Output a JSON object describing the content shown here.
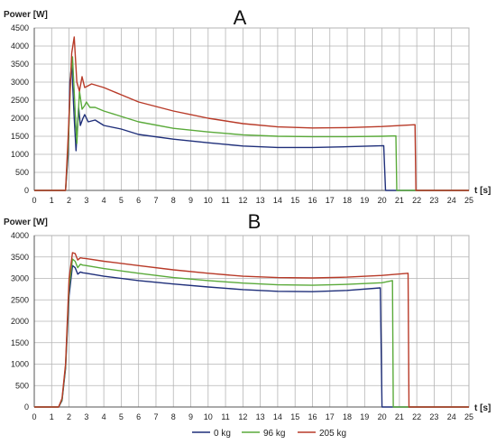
{
  "chart_data": [
    {
      "type": "line",
      "title": "A",
      "ylabel": "Power [W]",
      "xlabel": "t [s]",
      "xlim": [
        0,
        25
      ],
      "ylim": [
        0,
        4500
      ],
      "xticks": [
        "0",
        "1",
        "2",
        "3",
        "4",
        "5",
        "6",
        "7",
        "8",
        "9",
        "10",
        "11",
        "12",
        "13",
        "14",
        "15",
        "16",
        "17",
        "18",
        "19",
        "20",
        "21",
        "22",
        "23",
        "24",
        "25"
      ],
      "yticks": [
        "0",
        "500",
        "1000",
        "1500",
        "2000",
        "2500",
        "3000",
        "3500",
        "4000",
        "4500"
      ],
      "grid": true,
      "series": [
        {
          "name": "0 kg",
          "color": "#1f2f7a",
          "points": [
            [
              0,
              0
            ],
            [
              1.8,
              0
            ],
            [
              1.95,
              1000
            ],
            [
              2.05,
              3000
            ],
            [
              2.15,
              3500
            ],
            [
              2.3,
              2000
            ],
            [
              2.4,
              1100
            ],
            [
              2.55,
              2300
            ],
            [
              2.65,
              1800
            ],
            [
              2.8,
              2000
            ],
            [
              2.9,
              2100
            ],
            [
              3.1,
              1900
            ],
            [
              3.5,
              1950
            ],
            [
              4,
              1800
            ],
            [
              5,
              1700
            ],
            [
              6,
              1550
            ],
            [
              8,
              1420
            ],
            [
              10,
              1320
            ],
            [
              12,
              1230
            ],
            [
              14,
              1190
            ],
            [
              16,
              1190
            ],
            [
              18,
              1210
            ],
            [
              20.1,
              1240
            ],
            [
              20.2,
              0
            ],
            [
              25,
              0
            ]
          ]
        },
        {
          "name": "96 kg",
          "color": "#5aaa3a",
          "points": [
            [
              0,
              0
            ],
            [
              1.8,
              0
            ],
            [
              1.95,
              1200
            ],
            [
              2.1,
              3200
            ],
            [
              2.2,
              3700
            ],
            [
              2.35,
              2200
            ],
            [
              2.45,
              1300
            ],
            [
              2.6,
              2750
            ],
            [
              2.75,
              2250
            ],
            [
              2.9,
              2350
            ],
            [
              3,
              2450
            ],
            [
              3.2,
              2300
            ],
            [
              3.5,
              2300
            ],
            [
              4,
              2200
            ],
            [
              5,
              2050
            ],
            [
              6,
              1900
            ],
            [
              8,
              1720
            ],
            [
              10,
              1620
            ],
            [
              12,
              1540
            ],
            [
              14,
              1500
            ],
            [
              16,
              1490
            ],
            [
              18,
              1490
            ],
            [
              20,
              1500
            ],
            [
              20.8,
              1510
            ],
            [
              20.85,
              0
            ],
            [
              25,
              0
            ]
          ]
        },
        {
          "name": "205 kg",
          "color": "#b83a28",
          "points": [
            [
              0,
              0
            ],
            [
              1.8,
              0
            ],
            [
              1.95,
              1500
            ],
            [
              2.15,
              3800
            ],
            [
              2.3,
              4250
            ],
            [
              2.45,
              3000
            ],
            [
              2.6,
              2750
            ],
            [
              2.75,
              3150
            ],
            [
              2.9,
              2850
            ],
            [
              3.1,
              2900
            ],
            [
              3.3,
              2950
            ],
            [
              4,
              2850
            ],
            [
              5,
              2650
            ],
            [
              6,
              2450
            ],
            [
              8,
              2200
            ],
            [
              10,
              2000
            ],
            [
              12,
              1850
            ],
            [
              14,
              1760
            ],
            [
              16,
              1730
            ],
            [
              18,
              1740
            ],
            [
              20,
              1770
            ],
            [
              21.9,
              1820
            ],
            [
              21.95,
              0
            ],
            [
              25,
              0
            ]
          ]
        }
      ]
    },
    {
      "type": "line",
      "title": "B",
      "ylabel": "Power [W]",
      "xlabel": "t [s]",
      "xlim": [
        0,
        25
      ],
      "ylim": [
        0,
        4000
      ],
      "xticks": [
        "0",
        "1",
        "2",
        "3",
        "4",
        "5",
        "6",
        "7",
        "8",
        "9",
        "10",
        "11",
        "12",
        "13",
        "14",
        "15",
        "16",
        "17",
        "18",
        "19",
        "20",
        "21",
        "22",
        "23",
        "24",
        "25"
      ],
      "yticks": [
        "0",
        "500",
        "1000",
        "1500",
        "2000",
        "2500",
        "3000",
        "3500",
        "4000"
      ],
      "grid": true,
      "series": [
        {
          "name": "0 kg",
          "color": "#1f2f7a",
          "points": [
            [
              0,
              0
            ],
            [
              1.4,
              0
            ],
            [
              1.6,
              150
            ],
            [
              1.8,
              900
            ],
            [
              2,
              2600
            ],
            [
              2.2,
              3300
            ],
            [
              2.35,
              3250
            ],
            [
              2.5,
              3100
            ],
            [
              2.65,
              3150
            ],
            [
              2.8,
              3130
            ],
            [
              3,
              3120
            ],
            [
              4,
              3050
            ],
            [
              6,
              2950
            ],
            [
              8,
              2870
            ],
            [
              10,
              2800
            ],
            [
              12,
              2740
            ],
            [
              14,
              2700
            ],
            [
              16,
              2690
            ],
            [
              18,
              2720
            ],
            [
              19.9,
              2780
            ],
            [
              20,
              0
            ],
            [
              25,
              0
            ]
          ]
        },
        {
          "name": "96 kg",
          "color": "#5aaa3a",
          "points": [
            [
              0,
              0
            ],
            [
              1.4,
              0
            ],
            [
              1.6,
              170
            ],
            [
              1.8,
              950
            ],
            [
              2,
              2800
            ],
            [
              2.2,
              3450
            ],
            [
              2.35,
              3400
            ],
            [
              2.5,
              3250
            ],
            [
              2.65,
              3330
            ],
            [
              2.8,
              3310
            ],
            [
              3,
              3300
            ],
            [
              4,
              3230
            ],
            [
              6,
              3120
            ],
            [
              8,
              3020
            ],
            [
              10,
              2950
            ],
            [
              12,
              2890
            ],
            [
              14,
              2850
            ],
            [
              16,
              2840
            ],
            [
              18,
              2860
            ],
            [
              20,
              2900
            ],
            [
              20.6,
              2950
            ],
            [
              20.65,
              0
            ],
            [
              25,
              0
            ]
          ]
        },
        {
          "name": "205 kg",
          "color": "#b83a28",
          "points": [
            [
              0,
              0
            ],
            [
              1.4,
              0
            ],
            [
              1.6,
              200
            ],
            [
              1.8,
              1000
            ],
            [
              2,
              3000
            ],
            [
              2.2,
              3600
            ],
            [
              2.35,
              3580
            ],
            [
              2.5,
              3430
            ],
            [
              2.65,
              3480
            ],
            [
              2.8,
              3470
            ],
            [
              3,
              3460
            ],
            [
              4,
              3400
            ],
            [
              6,
              3300
            ],
            [
              8,
              3200
            ],
            [
              10,
              3120
            ],
            [
              12,
              3050
            ],
            [
              14,
              3020
            ],
            [
              16,
              3010
            ],
            [
              18,
              3030
            ],
            [
              20,
              3070
            ],
            [
              21.5,
              3120
            ],
            [
              21.55,
              0
            ],
            [
              25,
              0
            ]
          ]
        }
      ],
      "legend": {
        "position": "bottom",
        "entries": [
          {
            "label": "0 kg",
            "color": "#1f2f7a"
          },
          {
            "label": "96 kg",
            "color": "#5aaa3a"
          },
          {
            "label": "205 kg",
            "color": "#b83a28"
          }
        ]
      }
    }
  ]
}
